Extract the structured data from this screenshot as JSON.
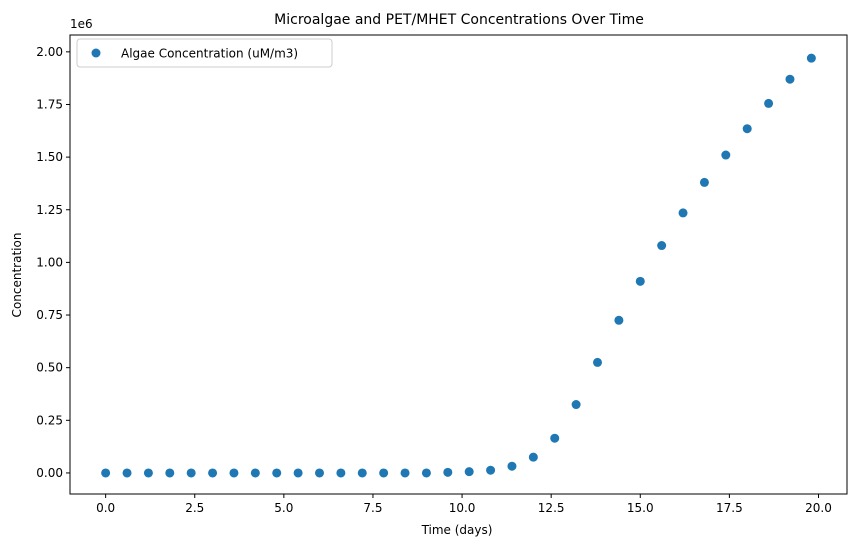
{
  "chart_data": {
    "type": "scatter",
    "title": "Microalgae and PET/MHET Concentrations Over Time",
    "xlabel": "Time (days)",
    "ylabel": "Concentration",
    "y_offset_label": "1e6",
    "xlim": [
      -1.0,
      20.8
    ],
    "ylim": [
      -0.1,
      2.08
    ],
    "xticks": [
      0.0,
      2.5,
      5.0,
      7.5,
      10.0,
      12.5,
      15.0,
      17.5,
      20.0
    ],
    "xtick_labels": [
      "0.0",
      "2.5",
      "5.0",
      "7.5",
      "10.0",
      "12.5",
      "15.0",
      "17.5",
      "20.0"
    ],
    "yticks": [
      0.0,
      0.25,
      0.5,
      0.75,
      1.0,
      1.25,
      1.5,
      1.75,
      2.0
    ],
    "ytick_labels": [
      "0.00",
      "0.25",
      "0.50",
      "0.75",
      "1.00",
      "1.25",
      "1.50",
      "1.75",
      "2.00"
    ],
    "grid": false,
    "legend_position": "top-left",
    "series": [
      {
        "name": "Algae Concentration (uM/m3)",
        "color": "#1f77b4",
        "x": [
          0.0,
          0.6,
          1.2,
          1.8,
          2.4,
          3.0,
          3.6,
          4.2,
          4.8,
          5.4,
          6.0,
          6.6,
          7.2,
          7.8,
          8.4,
          9.0,
          9.6,
          10.2,
          10.8,
          11.4,
          12.0,
          12.6,
          13.2,
          13.8,
          14.4,
          15.0,
          15.6,
          16.2,
          16.8,
          17.4,
          18.0,
          18.6,
          19.2,
          19.8
        ],
        "y": [
          0.0,
          0.0,
          0.0,
          0.0,
          0.0,
          0.0,
          0.0,
          0.0,
          0.0,
          0.0,
          0.0,
          0.0,
          0.0,
          0.0,
          0.0,
          0.0,
          0.003,
          0.006,
          0.013,
          0.032,
          0.075,
          0.165,
          0.325,
          0.525,
          0.725,
          0.91,
          1.08,
          1.235,
          1.38,
          1.51,
          1.635,
          1.755,
          1.87,
          1.97
        ]
      }
    ]
  }
}
